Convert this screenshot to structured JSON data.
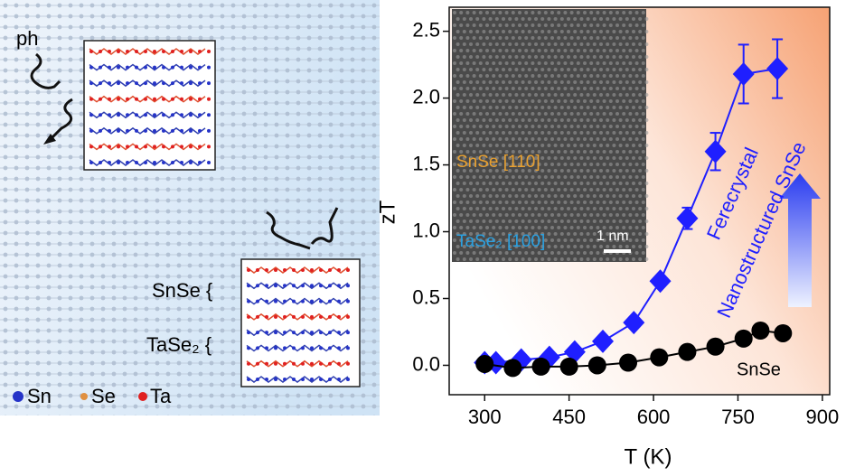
{
  "chart_data": {
    "type": "scatter",
    "xlabel": "T (K)",
    "ylabel": "zT",
    "xlim": [
      237,
      913
    ],
    "ylim": [
      -0.22,
      2.68
    ],
    "xticks": [
      300,
      450,
      600,
      750,
      900
    ],
    "yticks": [
      {
        "value": 0,
        "label": "0.0"
      },
      {
        "value": 0.5,
        "label": "0.5"
      },
      {
        "value": 1,
        "label": "1.0"
      },
      {
        "value": 1.5,
        "label": "1.5"
      },
      {
        "value": 2,
        "label": "2.0"
      },
      {
        "value": 2.5,
        "label": "2.5"
      }
    ],
    "series": [
      {
        "label_lines": [
          "Ferecrystal",
          "Nanostructured SnSe"
        ],
        "color": "#1f1fff",
        "marker": "diamond",
        "x": [
          300,
          320,
          365,
          415,
          460,
          510,
          565,
          612,
          660,
          710,
          760,
          820
        ],
        "values": [
          0.02,
          0.02,
          0.04,
          0.06,
          0.1,
          0.18,
          0.32,
          0.63,
          1.1,
          1.6,
          2.18,
          2.22
        ],
        "errors": [
          null,
          null,
          null,
          null,
          null,
          null,
          null,
          null,
          0.08,
          0.14,
          0.22,
          0.22
        ]
      },
      {
        "name": "SnSe",
        "color": "#000000",
        "marker": "circle",
        "x": [
          300,
          350,
          400,
          450,
          500,
          555,
          610,
          660,
          710,
          760,
          790,
          830
        ],
        "values": [
          0.01,
          -0.02,
          -0.01,
          -0.01,
          0.0,
          0.02,
          0.06,
          0.1,
          0.14,
          0.2,
          0.26,
          0.24
        ]
      }
    ],
    "inset": {
      "top_label": "SnSe [110]",
      "bottom_label": "TaSe₂ [100]",
      "scale_bar": "1 nm"
    }
  },
  "schematic": {
    "phonon": "ph",
    "layer_labels": [
      "SnSe {",
      "TaSe₂ {"
    ],
    "legend": [
      "Sn",
      "Se",
      "Ta"
    ]
  }
}
